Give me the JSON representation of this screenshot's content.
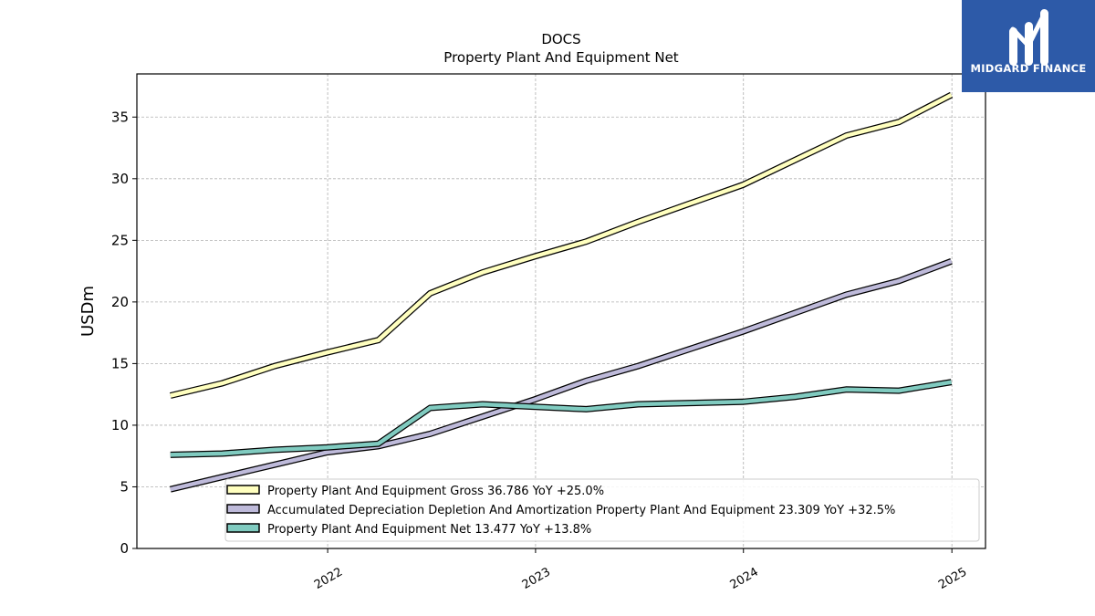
{
  "brand": {
    "name": "MIDGARD FINANCE",
    "bg_color": "#2d5aa8"
  },
  "chart_data": {
    "type": "line",
    "title": "DOCS",
    "subtitle": "Property Plant And Equipment Net",
    "ylabel": "USDm",
    "xlabel": "",
    "ylim": [
      0,
      38.5
    ],
    "y_ticks": [
      0,
      5,
      10,
      15,
      20,
      25,
      30,
      35
    ],
    "x_ticks": [
      "2022",
      "2023",
      "2024",
      "2025"
    ],
    "x_range": [
      "2021-01-31",
      "2025-03-01"
    ],
    "grid": true,
    "legend_position": "bottom-right",
    "x": [
      "2021-03-31",
      "2021-06-30",
      "2021-09-30",
      "2021-12-31",
      "2022-03-31",
      "2022-06-30",
      "2022-09-30",
      "2022-12-31",
      "2023-03-31",
      "2023-06-30",
      "2023-09-30",
      "2023-12-31",
      "2024-03-31",
      "2024-06-30",
      "2024-09-30",
      "2024-12-31"
    ],
    "series": [
      {
        "name": "Property Plant And Equipment Gross",
        "legend_label": "Property Plant And Equipment Gross  36.786 YoY +25.0%",
        "color": "#ffffbf",
        "values": [
          12.4,
          13.4,
          14.8,
          15.9,
          16.9,
          20.7,
          22.4,
          23.7,
          24.9,
          26.5,
          28.0,
          29.5,
          31.5,
          33.5,
          34.6,
          36.8
        ]
      },
      {
        "name": "Accumulated Depreciation Depletion And Amortization Property Plant And Equipment",
        "legend_label": "Accumulated Depreciation Depletion And Amortization Property Plant And Equipment  23.309 YoY +32.5%",
        "color": "#bebada",
        "values": [
          4.8,
          5.8,
          6.8,
          7.8,
          8.3,
          9.3,
          10.7,
          12.1,
          13.6,
          14.8,
          16.2,
          17.6,
          19.1,
          20.6,
          21.7,
          23.3
        ]
      },
      {
        "name": "Property Plant And Equipment Net",
        "legend_label": "Property Plant And Equipment Net  13.477 YoY +13.8%",
        "color": "#80cbc0",
        "values": [
          7.6,
          7.7,
          8.0,
          8.2,
          8.5,
          11.4,
          11.7,
          11.5,
          11.3,
          11.7,
          11.8,
          11.9,
          12.3,
          12.9,
          12.8,
          13.5
        ]
      }
    ]
  }
}
